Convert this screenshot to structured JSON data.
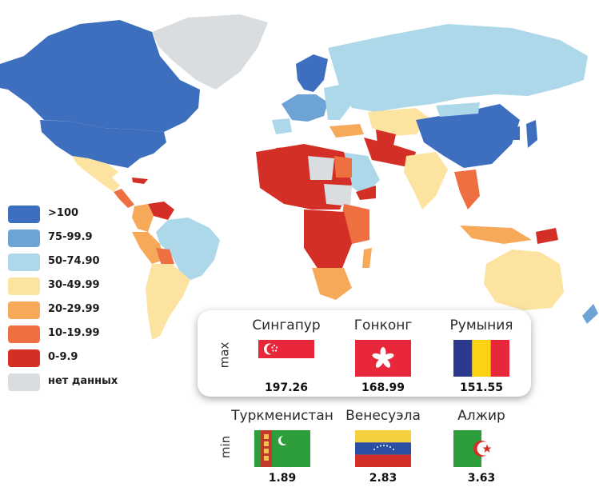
{
  "legend": {
    "items": [
      {
        "label": ">100",
        "color": "#3e6fbf"
      },
      {
        "label": "75-99.9",
        "color": "#6ea3d6"
      },
      {
        "label": "50-74.90",
        "color": "#add8ea"
      },
      {
        "label": "30-49.99",
        "color": "#fde3a0"
      },
      {
        "label": "20-29.99",
        "color": "#f7a95a"
      },
      {
        "label": "10-19.99",
        "color": "#ee7040"
      },
      {
        "label": "0-9.9",
        "color": "#d42f27"
      },
      {
        "label": "нет данных",
        "color": "#d9dde0"
      }
    ]
  },
  "max_panel": {
    "label": "max",
    "countries": [
      {
        "name": "Сингапур",
        "value": "197.26",
        "flag_icon": "singapore-flag-icon"
      },
      {
        "name": "Гонконг",
        "value": "168.99",
        "flag_icon": "hong-kong-flag-icon"
      },
      {
        "name": "Румыния",
        "value": "151.55",
        "flag_icon": "romania-flag-icon"
      }
    ]
  },
  "min_panel": {
    "label": "min",
    "countries": [
      {
        "name": "Туркменистан",
        "value": "1.89",
        "flag_icon": "turkmenistan-flag-icon"
      },
      {
        "name": "Венесуэла",
        "value": "2.83",
        "flag_icon": "venezuela-flag-icon"
      },
      {
        "name": "Алжир",
        "value": "3.63",
        "flag_icon": "algeria-flag-icon"
      }
    ]
  }
}
